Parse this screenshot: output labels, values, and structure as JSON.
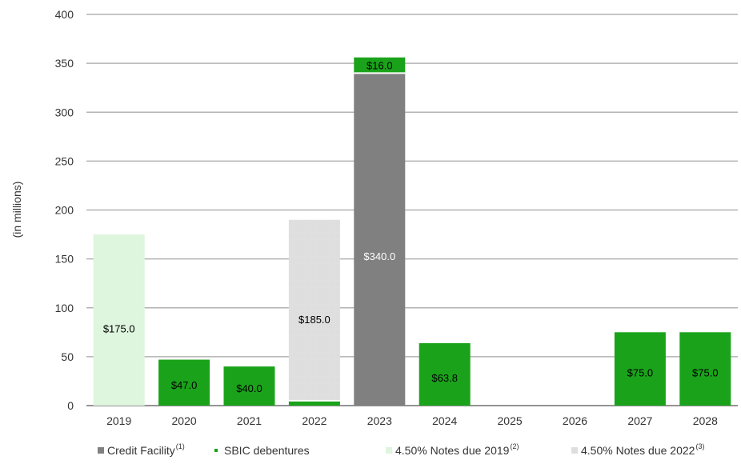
{
  "chart_data": {
    "type": "bar",
    "stacked": true,
    "ylabel": "(in millions)",
    "ylim": [
      0,
      400
    ],
    "yticks": [
      0,
      50,
      100,
      150,
      200,
      250,
      300,
      350,
      400
    ],
    "categories": [
      "2019",
      "2020",
      "2021",
      "2022",
      "2023",
      "2024",
      "2025",
      "2026",
      "2027",
      "2028"
    ],
    "grid": true,
    "legend_position": "bottom",
    "series": [
      {
        "key": "sbic",
        "name": "SBIC debentures",
        "sup": "",
        "color": "#1aa31a",
        "values": [
          0,
          47.0,
          40.0,
          5.0,
          16.0,
          63.8,
          0,
          0,
          75.0,
          75.0
        ],
        "labels": [
          "",
          "$47.0",
          "$40.0",
          "$5.0",
          "$16.0",
          "$63.8",
          "",
          "",
          "$75.0",
          "$75.0"
        ]
      },
      {
        "key": "credit",
        "name": "Credit Facility",
        "sup": "(1)",
        "color": "#808080",
        "values": [
          0,
          0,
          0,
          0,
          340.0,
          0,
          0,
          0,
          0,
          0
        ],
        "labels": [
          "",
          "",
          "",
          "",
          "$340.0",
          "",
          "",
          "",
          "",
          ""
        ]
      },
      {
        "key": "notes2019",
        "name": "4.50% Notes due 2019",
        "sup": "(2)",
        "color": "#def5de",
        "values": [
          175.0,
          0,
          0,
          0,
          0,
          0,
          0,
          0,
          0,
          0
        ],
        "labels": [
          "$175.0",
          "",
          "",
          "",
          "",
          "",
          "",
          "",
          "",
          ""
        ]
      },
      {
        "key": "notes2022",
        "name": "4.50% Notes due 2022",
        "sup": "(3)",
        "color": "#dedede",
        "values": [
          0,
          0,
          0,
          185.0,
          0,
          0,
          0,
          0,
          0,
          0
        ],
        "labels": [
          "",
          "",
          "",
          "$185.0",
          "",
          "",
          "",
          "",
          "",
          ""
        ]
      }
    ],
    "stack_order_by_category": {
      "2022": [
        "sbic",
        "notes2022"
      ],
      "2023": [
        "credit",
        "sbic"
      ]
    },
    "legend_order": [
      "credit",
      "sbic",
      "notes2019",
      "notes2022"
    ]
  }
}
